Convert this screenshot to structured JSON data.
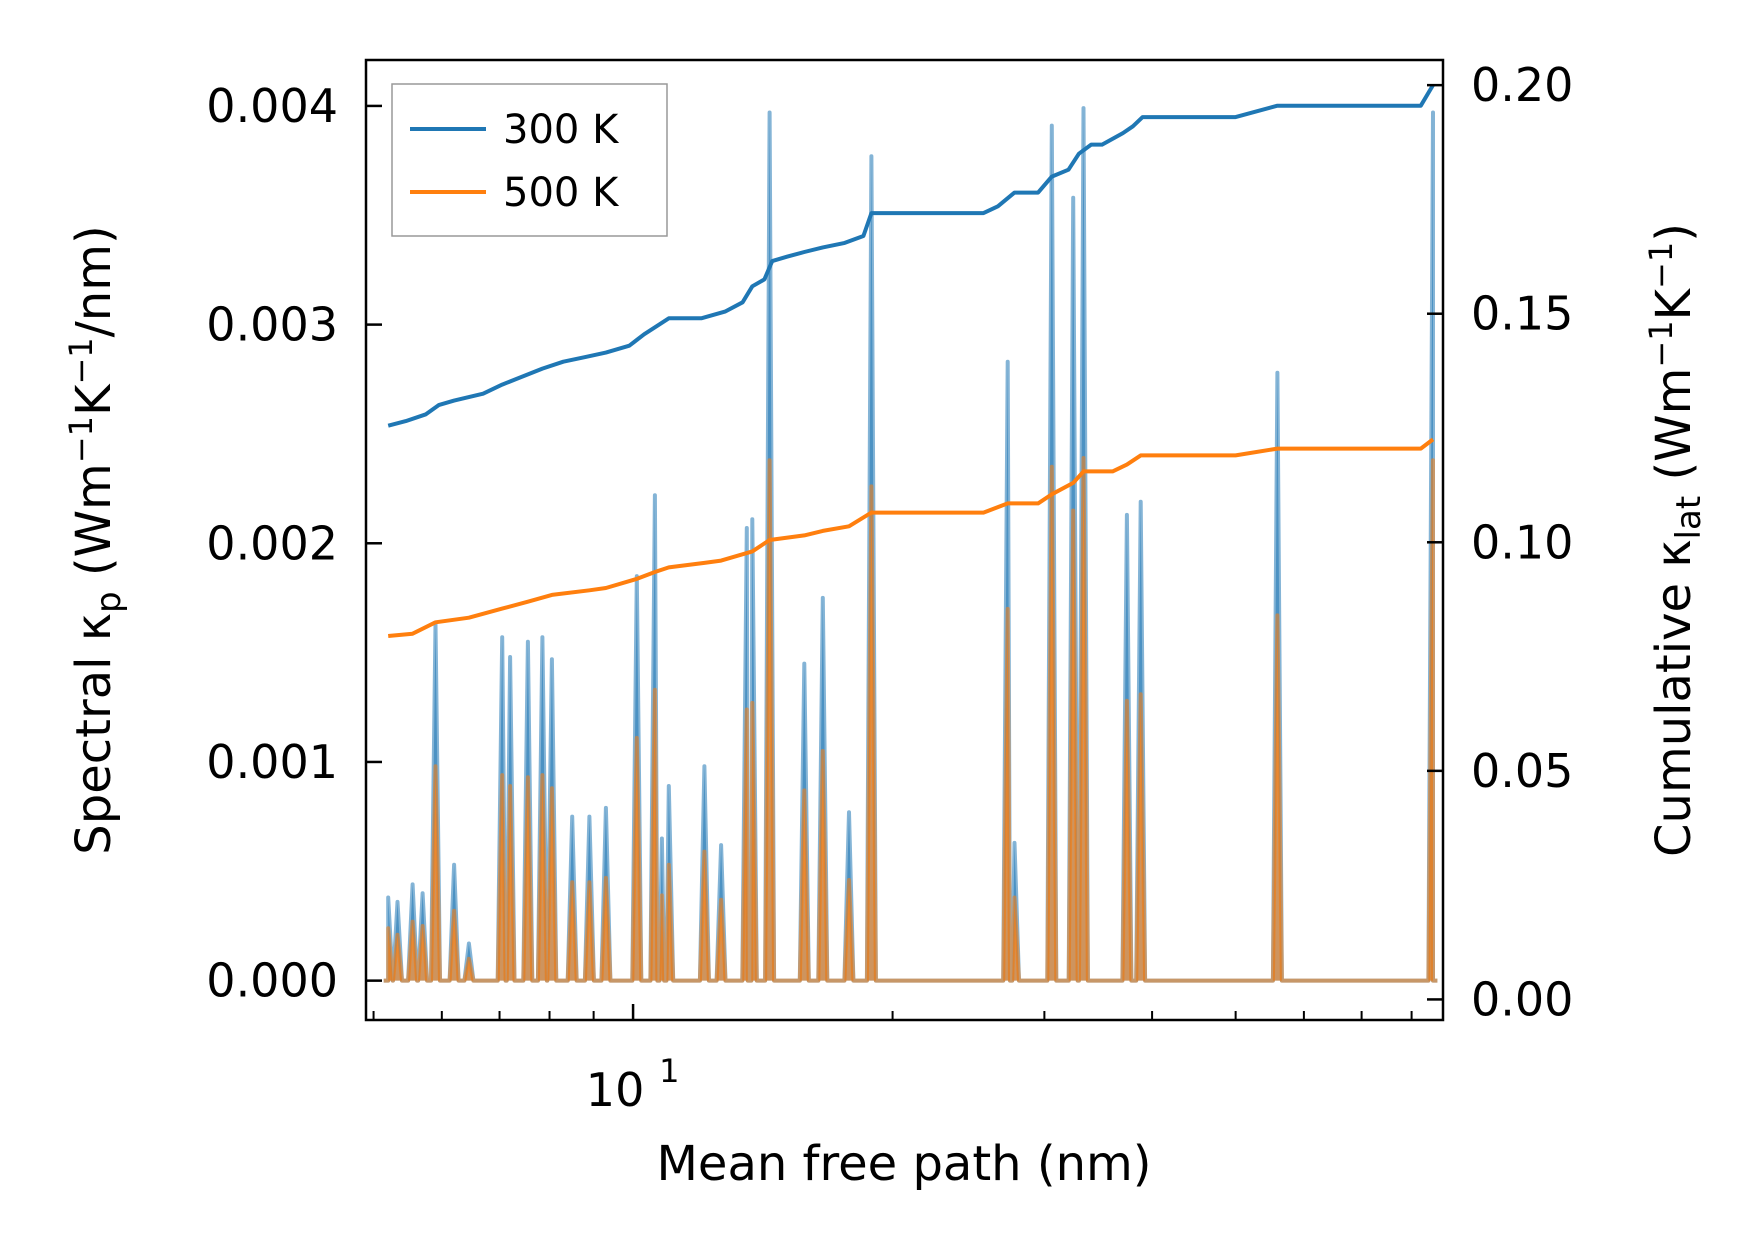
{
  "chart_data": {
    "type": "line",
    "xscale": "log",
    "xlabel": "Mean free path (nm)",
    "ylabel_left": "Spectral κ_p (Wm⁻¹K⁻¹/nm)",
    "ylabel_right": "Cumulative κ_lat (Wm⁻¹K⁻¹)",
    "xlim": [
      4.9,
      87
    ],
    "ylim_left": [
      -0.00018,
      0.00421
    ],
    "ylim_right": [
      -0.0045,
      0.2055
    ],
    "x_ticks": [
      {
        "value": 10,
        "base": "10",
        "exp": "1"
      }
    ],
    "y_ticks_left": [
      "0.000",
      "0.001",
      "0.002",
      "0.003",
      "0.004"
    ],
    "y_ticks_right": [
      "0.00",
      "0.05",
      "0.10",
      "0.15",
      "0.20"
    ],
    "legend": [
      {
        "label": "300 K",
        "color": "#1f77b4"
      },
      {
        "label": "500 K",
        "color": "#ff7f0e"
      }
    ],
    "spectral_series": [
      {
        "name": "300 K",
        "color": "#1f77b4",
        "peaks": [
          [
            5.2,
            0.00038
          ],
          [
            5.33,
            0.00036
          ],
          [
            5.55,
            0.00044
          ],
          [
            5.7,
            0.0004
          ],
          [
            5.9,
            0.00163
          ],
          [
            6.2,
            0.00053
          ],
          [
            6.45,
            0.00017
          ],
          [
            7.05,
            0.00157
          ],
          [
            7.2,
            0.00148
          ],
          [
            7.55,
            0.00155
          ],
          [
            7.85,
            0.00157
          ],
          [
            8.05,
            0.00147
          ],
          [
            8.5,
            0.00075
          ],
          [
            8.9,
            0.00075
          ],
          [
            9.3,
            0.00079
          ],
          [
            10.1,
            0.00185
          ],
          [
            10.6,
            0.00222
          ],
          [
            10.8,
            0.00065
          ],
          [
            11.0,
            0.00089
          ],
          [
            12.1,
            0.00098
          ],
          [
            12.65,
            0.00062
          ],
          [
            13.55,
            0.00207
          ],
          [
            13.75,
            0.00211
          ],
          [
            14.4,
            0.00397
          ],
          [
            15.8,
            0.00145
          ],
          [
            16.6,
            0.00175
          ],
          [
            17.8,
            0.00077
          ],
          [
            18.9,
            0.00377
          ],
          [
            27.2,
            0.00283
          ],
          [
            27.7,
            0.00063
          ],
          [
            30.6,
            0.00391
          ],
          [
            32.4,
            0.00358
          ],
          [
            33.3,
            0.00399
          ],
          [
            37.4,
            0.00213
          ],
          [
            38.8,
            0.00219
          ],
          [
            55.9,
            0.00278
          ],
          [
            84.7,
            0.00397
          ]
        ]
      },
      {
        "name": "500 K",
        "color": "#ff7f0e",
        "peaks": [
          [
            5.2,
            0.00024
          ],
          [
            5.33,
            0.00021
          ],
          [
            5.55,
            0.00027
          ],
          [
            5.7,
            0.00025
          ],
          [
            5.9,
            0.00098
          ],
          [
            6.2,
            0.00032
          ],
          [
            6.45,
            0.0001
          ],
          [
            7.05,
            0.00094
          ],
          [
            7.2,
            0.00089
          ],
          [
            7.55,
            0.00093
          ],
          [
            7.85,
            0.00094
          ],
          [
            8.05,
            0.00088
          ],
          [
            8.5,
            0.00045
          ],
          [
            8.9,
            0.00045
          ],
          [
            9.3,
            0.00047
          ],
          [
            10.1,
            0.00111
          ],
          [
            10.6,
            0.00133
          ],
          [
            10.8,
            0.00039
          ],
          [
            11.0,
            0.00053
          ],
          [
            12.1,
            0.00059
          ],
          [
            12.65,
            0.00037
          ],
          [
            13.55,
            0.00124
          ],
          [
            13.75,
            0.00127
          ],
          [
            14.4,
            0.00238
          ],
          [
            15.8,
            0.00087
          ],
          [
            16.6,
            0.00105
          ],
          [
            17.8,
            0.00046
          ],
          [
            18.9,
            0.00226
          ],
          [
            27.2,
            0.0017
          ],
          [
            27.7,
            0.00038
          ],
          [
            30.6,
            0.00235
          ],
          [
            32.4,
            0.00215
          ],
          [
            33.3,
            0.00239
          ],
          [
            37.4,
            0.00128
          ],
          [
            38.8,
            0.00131
          ],
          [
            55.9,
            0.00167
          ],
          [
            84.7,
            0.00238
          ]
        ]
      }
    ],
    "cumulative_series": [
      {
        "name": "300 K",
        "color": "#1f77b4",
        "points": [
          [
            5.2,
            0.1255
          ],
          [
            5.45,
            0.1265
          ],
          [
            5.75,
            0.128
          ],
          [
            5.95,
            0.13
          ],
          [
            6.2,
            0.131
          ],
          [
            6.7,
            0.1325
          ],
          [
            7.05,
            0.1345
          ],
          [
            7.5,
            0.1365
          ],
          [
            7.85,
            0.138
          ],
          [
            8.3,
            0.1395
          ],
          [
            8.8,
            0.1405
          ],
          [
            9.3,
            0.1415
          ],
          [
            9.9,
            0.143
          ],
          [
            10.3,
            0.1455
          ],
          [
            10.7,
            0.1475
          ],
          [
            11.0,
            0.149
          ],
          [
            12.0,
            0.149
          ],
          [
            12.8,
            0.1505
          ],
          [
            13.4,
            0.1525
          ],
          [
            13.75,
            0.156
          ],
          [
            14.2,
            0.1575
          ],
          [
            14.5,
            0.1615
          ],
          [
            15.1,
            0.1625
          ],
          [
            15.8,
            0.1635
          ],
          [
            16.6,
            0.1645
          ],
          [
            17.6,
            0.1655
          ],
          [
            18.5,
            0.167
          ],
          [
            18.9,
            0.172
          ],
          [
            21.0,
            0.172
          ],
          [
            25.5,
            0.172
          ],
          [
            26.5,
            0.1735
          ],
          [
            27.7,
            0.1765
          ],
          [
            29.5,
            0.1765
          ],
          [
            30.6,
            0.18
          ],
          [
            32.0,
            0.1815
          ],
          [
            32.9,
            0.185
          ],
          [
            34.0,
            0.187
          ],
          [
            35.0,
            0.187
          ],
          [
            37.0,
            0.1895
          ],
          [
            38.0,
            0.191
          ],
          [
            39.0,
            0.193
          ],
          [
            50.0,
            0.193
          ],
          [
            55.9,
            0.1955
          ],
          [
            65.0,
            0.1955
          ],
          [
            82.0,
            0.1955
          ],
          [
            84.7,
            0.2
          ]
        ]
      },
      {
        "name": "500 K",
        "color": "#ff7f0e",
        "points": [
          [
            5.2,
            0.0795
          ],
          [
            5.55,
            0.08
          ],
          [
            5.9,
            0.0825
          ],
          [
            6.45,
            0.0835
          ],
          [
            7.05,
            0.0855
          ],
          [
            7.55,
            0.087
          ],
          [
            8.05,
            0.0885
          ],
          [
            8.9,
            0.0895
          ],
          [
            9.3,
            0.09
          ],
          [
            10.1,
            0.092
          ],
          [
            10.6,
            0.0935
          ],
          [
            11.0,
            0.0945
          ],
          [
            12.1,
            0.0955
          ],
          [
            12.65,
            0.096
          ],
          [
            13.75,
            0.098
          ],
          [
            14.4,
            0.1005
          ],
          [
            15.8,
            0.1015
          ],
          [
            16.6,
            0.1025
          ],
          [
            17.8,
            0.1035
          ],
          [
            18.9,
            0.1065
          ],
          [
            25.5,
            0.1065
          ],
          [
            27.2,
            0.1085
          ],
          [
            29.5,
            0.1085
          ],
          [
            30.6,
            0.1105
          ],
          [
            32.4,
            0.113
          ],
          [
            33.3,
            0.1155
          ],
          [
            36.0,
            0.1155
          ],
          [
            37.4,
            0.117
          ],
          [
            38.8,
            0.119
          ],
          [
            50.0,
            0.119
          ],
          [
            55.9,
            0.1205
          ],
          [
            82.0,
            0.1205
          ],
          [
            84.7,
            0.1225
          ]
        ]
      }
    ]
  }
}
